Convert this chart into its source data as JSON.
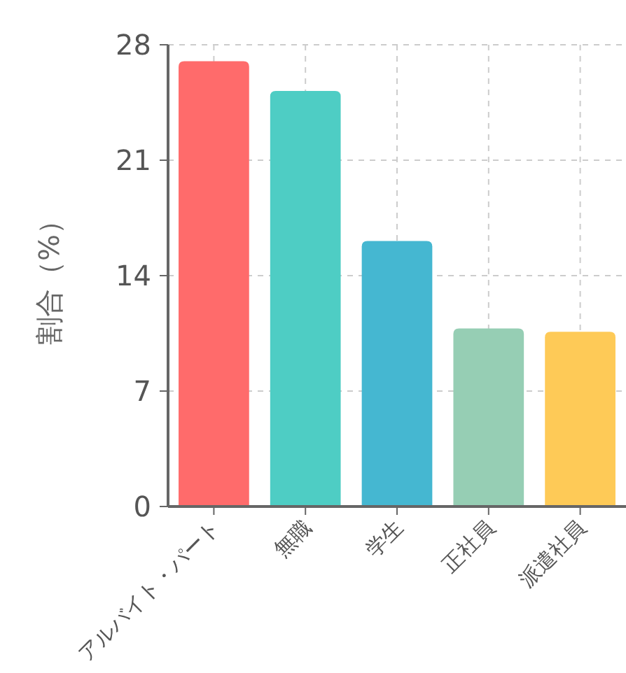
{
  "chart_data": {
    "type": "bar",
    "ylabel": "割合（%）",
    "categories": [
      "アルバイト・パート",
      "無職",
      "学生",
      "正社員",
      "派遣社員"
    ],
    "values": [
      27.0,
      25.2,
      16.1,
      10.8,
      10.6
    ],
    "colors": [
      "#ff6b6b",
      "#4ecdc4",
      "#45b7d1",
      "#96ceb4",
      "#feca57"
    ],
    "ylim": [
      0,
      28
    ],
    "yticks": [
      0,
      7,
      14,
      21,
      28
    ],
    "grid": true
  }
}
